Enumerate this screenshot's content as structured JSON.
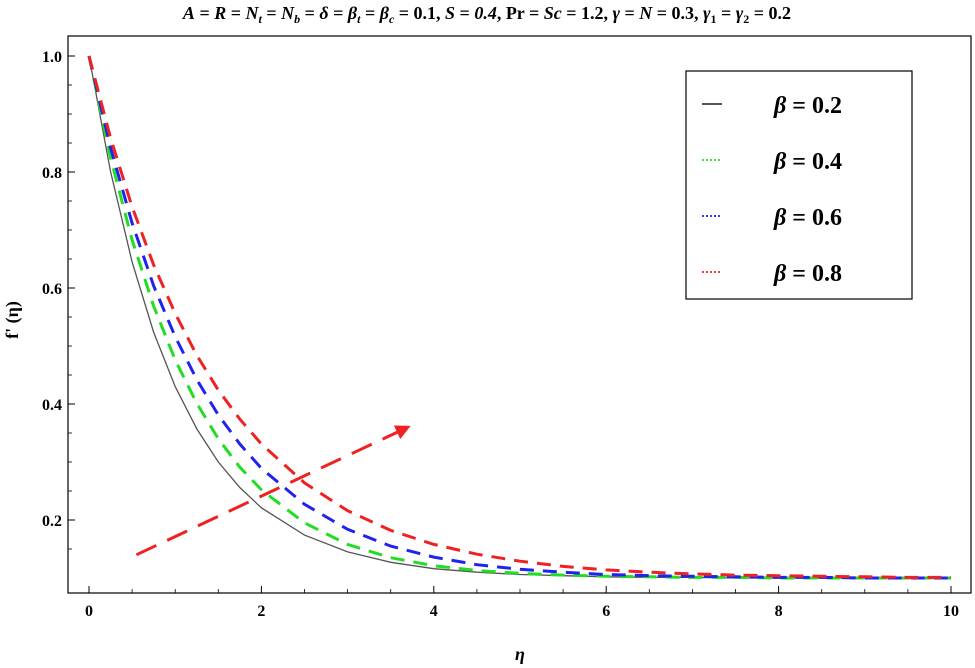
{
  "chart_data": {
    "type": "line",
    "title": "",
    "xlabel": "η",
    "ylabel": "f' (η)",
    "xlim": [
      0,
      10
    ],
    "ylim": [
      0.08,
      1.05
    ],
    "x_ticks": [
      0,
      2,
      4,
      6,
      8,
      10
    ],
    "x_tick_labels": [
      "0",
      "2",
      "4",
      "6",
      "8",
      "10"
    ],
    "y_ticks": [
      0.2,
      0.4,
      0.6,
      0.8,
      1.0
    ],
    "y_tick_labels": [
      "0.2",
      "0.4",
      "0.6",
      "0.8",
      "1.0"
    ],
    "grid": false,
    "legend_position": "top-right",
    "x": [
      0,
      0.25,
      0.5,
      0.75,
      1.0,
      1.25,
      1.5,
      1.75,
      2.0,
      2.5,
      3.0,
      3.5,
      4.0,
      4.5,
      5.0,
      5.5,
      6.0,
      6.5,
      7.0,
      7.5,
      8.0,
      8.5,
      9.0,
      9.5,
      10.0
    ],
    "series": [
      {
        "name": "β = 0.2",
        "color": "#555555",
        "style": "solid",
        "values": [
          1.0,
          0.801,
          0.645,
          0.524,
          0.43,
          0.357,
          0.3,
          0.256,
          0.221,
          0.174,
          0.145,
          0.127,
          0.116,
          0.11,
          0.106,
          0.104,
          0.102,
          0.101,
          0.101,
          0.1,
          0.1,
          0.1,
          0.1,
          0.1,
          0.1
        ]
      },
      {
        "name": "β = 0.4",
        "color": "#22dd22",
        "style": "dashed",
        "values": [
          1.0,
          0.825,
          0.683,
          0.569,
          0.476,
          0.401,
          0.34,
          0.291,
          0.252,
          0.195,
          0.158,
          0.135,
          0.121,
          0.113,
          0.108,
          0.105,
          0.103,
          0.102,
          0.101,
          0.101,
          0.1,
          0.1,
          0.1,
          0.1,
          0.1
        ]
      },
      {
        "name": "β = 0.6",
        "color": "#2222ee",
        "style": "dashed",
        "values": [
          1.0,
          0.842,
          0.712,
          0.604,
          0.516,
          0.442,
          0.381,
          0.331,
          0.289,
          0.227,
          0.184,
          0.155,
          0.136,
          0.123,
          0.115,
          0.11,
          0.106,
          0.104,
          0.103,
          0.102,
          0.101,
          0.101,
          0.1,
          0.1,
          0.1
        ]
      },
      {
        "name": "β = 0.8",
        "color": "#ee2222",
        "style": "dashed",
        "values": [
          1.0,
          0.859,
          0.74,
          0.64,
          0.556,
          0.484,
          0.424,
          0.374,
          0.331,
          0.264,
          0.216,
          0.182,
          0.158,
          0.141,
          0.129,
          0.12,
          0.114,
          0.11,
          0.107,
          0.105,
          0.104,
          0.103,
          0.102,
          0.101,
          0.101
        ]
      }
    ],
    "annotations": [
      {
        "type": "arrow",
        "color": "#ee2222",
        "style": "dashed",
        "from": [
          0.55,
          0.14
        ],
        "to": [
          3.7,
          0.36
        ]
      }
    ],
    "header_parameters": "A = R = Nt = Nb = δ = βt = βc = 0.1, S = 0.4, Pr = Sc = 1.2, γ = N = 0.3, γ1 = γ2 = 0.2"
  }
}
